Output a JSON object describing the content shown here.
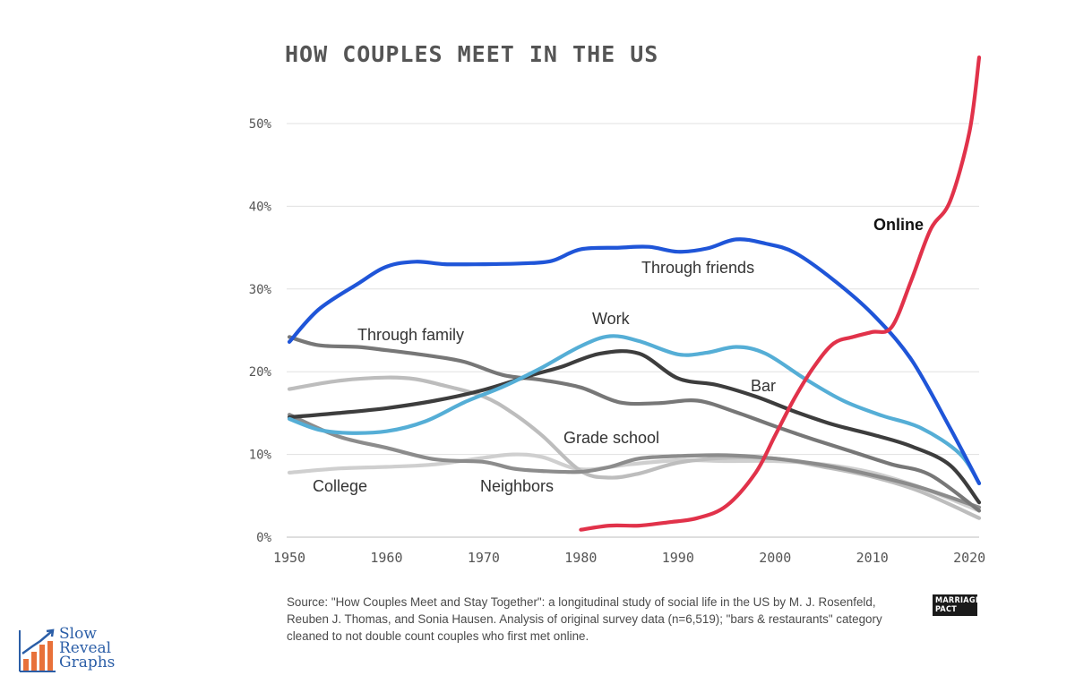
{
  "title": "HOW COUPLES MEET IN THE US",
  "source_text": "Source: \"How Couples Meet and Stay Together\": a longitudinal study of social life in the US by M. J. Rosenfeld, Reuben J. Thomas, and Sonia Hausen. Analysis of original survey data (n=6,519); \"bars & restaurants\" category cleaned to not double count couples who first met online.",
  "publisher_logo": "MARRIAGE PACT",
  "watermark": {
    "line1": "Slow",
    "line2": "Reveal",
    "line3": "Graphs"
  },
  "chart_data": {
    "type": "line",
    "title": "HOW COUPLES MEET IN THE US",
    "xlabel": "",
    "ylabel": "",
    "xlim": [
      1950,
      2021
    ],
    "ylim": [
      0,
      50
    ],
    "grid": true,
    "x_ticks": [
      1950,
      1960,
      1970,
      1980,
      1990,
      2000,
      2010,
      2020
    ],
    "y_ticks": [
      {
        "value": 0,
        "label": "0%"
      },
      {
        "value": 10,
        "label": "10%"
      },
      {
        "value": 20,
        "label": "20%"
      },
      {
        "value": 30,
        "label": "30%"
      },
      {
        "value": 40,
        "label": "40%"
      },
      {
        "value": 50,
        "label": "50%"
      }
    ],
    "series": [
      {
        "name": "College",
        "label": "College",
        "color": "#cfcfcf",
        "x": [
          1950,
          1955,
          1960,
          1965,
          1970,
          1973,
          1976,
          1980,
          1985,
          1990,
          1995,
          2000,
          2005,
          2010,
          2015,
          2021
        ],
        "values": [
          7.8,
          8.3,
          8.5,
          8.8,
          9.6,
          10.0,
          9.7,
          8.2,
          8.8,
          9.3,
          9.2,
          9.2,
          8.8,
          7.8,
          6.0,
          3.2
        ]
      },
      {
        "name": "Grade school",
        "label": "Grade school",
        "color": "#bdbdbd",
        "x": [
          1950,
          1955,
          1960,
          1963,
          1966,
          1970,
          1973,
          1976,
          1980,
          1983,
          1986,
          1990,
          1995,
          2000,
          2005,
          2010,
          2015,
          2021
        ],
        "values": [
          17.9,
          18.9,
          19.3,
          19.1,
          18.3,
          17.0,
          15.0,
          12.3,
          8.0,
          7.2,
          7.7,
          9.0,
          9.6,
          9.5,
          8.5,
          7.3,
          5.5,
          2.3
        ]
      },
      {
        "name": "Neighbors",
        "label": "Neighbors",
        "color": "#8c8c8c",
        "x": [
          1950,
          1955,
          1960,
          1965,
          1970,
          1973,
          1976,
          1980,
          1983,
          1986,
          1990,
          1995,
          2000,
          2005,
          2010,
          2015,
          2021
        ],
        "values": [
          14.8,
          12.2,
          10.8,
          9.4,
          9.1,
          8.3,
          8.0,
          7.9,
          8.5,
          9.5,
          9.8,
          9.9,
          9.5,
          8.7,
          7.5,
          6.0,
          3.6
        ]
      },
      {
        "name": "Through family",
        "label": "Through family",
        "color": "#777777",
        "x": [
          1950,
          1953,
          1957,
          1960,
          1964,
          1968,
          1972,
          1976,
          1980,
          1984,
          1988,
          1992,
          1996,
          2000,
          2004,
          2008,
          2012,
          2016,
          2021
        ],
        "values": [
          24.2,
          23.2,
          23.0,
          22.6,
          22.0,
          21.2,
          19.6,
          19.0,
          18.1,
          16.3,
          16.2,
          16.5,
          15.1,
          13.4,
          11.8,
          10.3,
          8.8,
          7.5,
          3.2
        ]
      },
      {
        "name": "Bar",
        "label": "Bar",
        "color": "#3d3d3d",
        "x": [
          1950,
          1955,
          1960,
          1965,
          1970,
          1975,
          1978,
          1982,
          1986,
          1990,
          1994,
          1998,
          2002,
          2006,
          2010,
          2014,
          2018,
          2021
        ],
        "values": [
          14.5,
          15.0,
          15.6,
          16.5,
          17.8,
          19.6,
          20.6,
          22.2,
          22.2,
          19.2,
          18.4,
          17.0,
          15.2,
          13.6,
          12.4,
          11.0,
          8.7,
          4.2
        ]
      },
      {
        "name": "Work",
        "label": "Work",
        "color": "#55aed6",
        "x": [
          1950,
          1953,
          1956,
          1960,
          1964,
          1968,
          1972,
          1976,
          1980,
          1983,
          1986,
          1990,
          1993,
          1996,
          1999,
          2003,
          2007,
          2011,
          2015,
          2019,
          2021
        ],
        "values": [
          14.3,
          13.0,
          12.6,
          12.8,
          14.0,
          16.3,
          18.2,
          20.5,
          23.1,
          24.3,
          23.7,
          22.1,
          22.3,
          23.0,
          22.2,
          19.2,
          16.5,
          14.7,
          13.2,
          10.1,
          6.5
        ]
      },
      {
        "name": "Through friends",
        "label": "Through friends",
        "color": "#1f55d8",
        "x": [
          1950,
          1953,
          1957,
          1960,
          1963,
          1966,
          1970,
          1974,
          1977,
          1980,
          1984,
          1987,
          1990,
          1993,
          1996,
          1999,
          2002,
          2006,
          2010,
          2014,
          2018,
          2021
        ],
        "values": [
          23.6,
          27.5,
          30.6,
          32.7,
          33.3,
          33.0,
          33.0,
          33.1,
          33.4,
          34.8,
          35.0,
          35.1,
          34.5,
          34.9,
          36.0,
          35.5,
          34.4,
          31.1,
          27.0,
          21.5,
          13.2,
          6.5
        ]
      },
      {
        "name": "Online",
        "label": "Online",
        "color": "#e1324a",
        "x": [
          1980,
          1983,
          1986,
          1989,
          1992,
          1995,
          1998,
          2000,
          2002,
          2004,
          2006,
          2008,
          2010,
          2012,
          2014,
          2016,
          2018,
          2020,
          2021
        ],
        "values": [
          0.9,
          1.4,
          1.4,
          1.8,
          2.3,
          3.8,
          7.8,
          12.3,
          16.8,
          20.6,
          23.4,
          24.2,
          24.8,
          25.4,
          31.0,
          37.2,
          40.6,
          49.0,
          58.0
        ]
      }
    ]
  }
}
